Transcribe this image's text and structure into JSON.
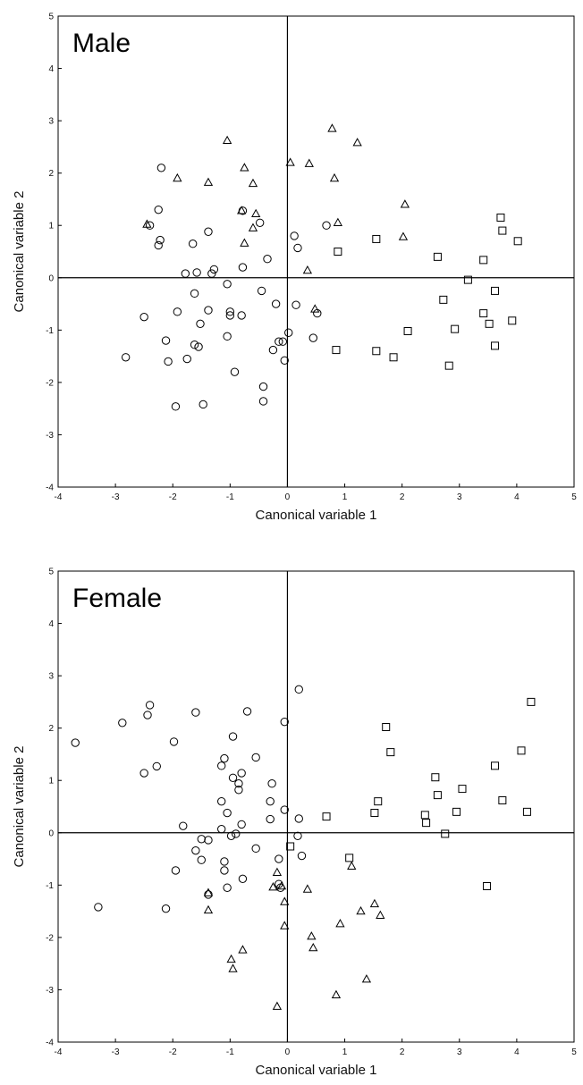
{
  "chart_data": [
    {
      "type": "scatter",
      "panel_label": "Male",
      "xlabel": "Canonical variable 1",
      "ylabel": "Canonical variable 2",
      "xlim": [
        -4,
        5
      ],
      "ylim": [
        -4,
        5
      ],
      "xticks": [
        -4,
        -3,
        -2,
        -1,
        0,
        1,
        2,
        3,
        4,
        5
      ],
      "yticks": [
        -4,
        -3,
        -2,
        -1,
        0,
        1,
        2,
        3,
        4,
        5
      ],
      "reference_lines": {
        "x": 0,
        "y": 0
      },
      "grid": false,
      "series": [
        {
          "marker": "circle",
          "points": [
            [
              -2.2,
              2.1
            ],
            [
              -2.25,
              1.3
            ],
            [
              -2.25,
              0.62
            ],
            [
              -2.22,
              0.72
            ],
            [
              -2.4,
              1.0
            ],
            [
              -2.5,
              -0.75
            ],
            [
              -2.82,
              -1.52
            ],
            [
              -2.12,
              -1.2
            ],
            [
              -2.08,
              -1.6
            ],
            [
              -1.92,
              -0.65
            ],
            [
              -1.78,
              0.08
            ],
            [
              -1.65,
              0.65
            ],
            [
              -1.62,
              -0.3
            ],
            [
              -1.58,
              0.1
            ],
            [
              -1.52,
              -0.88
            ],
            [
              -1.62,
              -1.28
            ],
            [
              -1.55,
              -1.32
            ],
            [
              -1.75,
              -1.55
            ],
            [
              -1.38,
              0.88
            ],
            [
              -1.32,
              0.08
            ],
            [
              -1.28,
              0.16
            ],
            [
              -1.38,
              -0.62
            ],
            [
              -1.95,
              -2.46
            ],
            [
              -1.47,
              -2.42
            ],
            [
              -1.05,
              -0.12
            ],
            [
              -1.0,
              -0.72
            ],
            [
              -1.0,
              -0.65
            ],
            [
              -1.05,
              -1.12
            ],
            [
              -0.92,
              -1.8
            ],
            [
              -0.78,
              1.28
            ],
            [
              -0.78,
              0.2
            ],
            [
              -0.8,
              -0.72
            ],
            [
              -0.48,
              1.05
            ],
            [
              -0.35,
              0.36
            ],
            [
              -0.45,
              -0.25
            ],
            [
              -0.42,
              -2.08
            ],
            [
              -0.42,
              -2.36
            ],
            [
              -0.25,
              -1.38
            ],
            [
              -0.2,
              -0.5
            ],
            [
              -0.15,
              -1.22
            ],
            [
              -0.08,
              -1.22
            ],
            [
              -0.05,
              -1.58
            ],
            [
              0.02,
              -1.05
            ],
            [
              0.12,
              0.8
            ],
            [
              0.18,
              0.57
            ],
            [
              0.15,
              -0.52
            ],
            [
              0.45,
              -1.15
            ],
            [
              0.52,
              -0.68
            ],
            [
              0.68,
              1.0
            ]
          ]
        },
        {
          "marker": "triangle",
          "points": [
            [
              -1.05,
              2.62
            ],
            [
              -0.75,
              2.1
            ],
            [
              -1.92,
              1.9
            ],
            [
              -1.38,
              1.82
            ],
            [
              -0.6,
              1.8
            ],
            [
              -2.45,
              1.02
            ],
            [
              -0.8,
              1.28
            ],
            [
              -0.55,
              1.22
            ],
            [
              -0.6,
              0.95
            ],
            [
              -0.75,
              0.66
            ],
            [
              0.05,
              2.2
            ],
            [
              0.38,
              2.18
            ],
            [
              0.78,
              2.85
            ],
            [
              1.22,
              2.58
            ],
            [
              0.82,
              1.9
            ],
            [
              0.88,
              1.05
            ],
            [
              2.05,
              1.4
            ],
            [
              2.02,
              0.78
            ],
            [
              0.35,
              0.14
            ],
            [
              0.48,
              -0.6
            ]
          ]
        },
        {
          "marker": "square",
          "points": [
            [
              3.72,
              1.15
            ],
            [
              3.75,
              0.9
            ],
            [
              4.02,
              0.7
            ],
            [
              0.88,
              0.5
            ],
            [
              1.55,
              0.74
            ],
            [
              2.62,
              0.4
            ],
            [
              3.42,
              0.34
            ],
            [
              3.15,
              -0.04
            ],
            [
              2.72,
              -0.42
            ],
            [
              3.62,
              -0.25
            ],
            [
              3.42,
              -0.68
            ],
            [
              3.52,
              -0.88
            ],
            [
              3.92,
              -0.82
            ],
            [
              2.92,
              -0.98
            ],
            [
              2.1,
              -1.02
            ],
            [
              3.62,
              -1.3
            ],
            [
              0.85,
              -1.38
            ],
            [
              1.55,
              -1.4
            ],
            [
              1.85,
              -1.52
            ],
            [
              2.82,
              -1.68
            ]
          ]
        }
      ]
    },
    {
      "type": "scatter",
      "panel_label": "Female",
      "xlabel": "Canonical variable 1",
      "ylabel": "Canonical variable 2",
      "xlim": [
        -4,
        5
      ],
      "ylim": [
        -4,
        5
      ],
      "xticks": [
        -4,
        -3,
        -2,
        -1,
        0,
        1,
        2,
        3,
        4,
        5
      ],
      "yticks": [
        -4,
        -3,
        -2,
        -1,
        0,
        1,
        2,
        3,
        4,
        5
      ],
      "reference_lines": {
        "x": 0,
        "y": 0
      },
      "grid": false,
      "series": [
        {
          "marker": "circle",
          "points": [
            [
              -3.7,
              1.72
            ],
            [
              -2.88,
              2.1
            ],
            [
              -2.4,
              2.44
            ],
            [
              -2.44,
              2.25
            ],
            [
              -2.28,
              1.27
            ],
            [
              -2.5,
              1.14
            ],
            [
              -1.98,
              1.74
            ],
            [
              -1.6,
              2.3
            ],
            [
              -0.7,
              2.32
            ],
            [
              -0.05,
              2.12
            ],
            [
              0.2,
              2.74
            ],
            [
              -0.95,
              1.84
            ],
            [
              -1.1,
              1.42
            ],
            [
              -1.15,
              1.28
            ],
            [
              -0.95,
              1.05
            ],
            [
              -0.55,
              1.44
            ],
            [
              -0.8,
              1.14
            ],
            [
              -0.85,
              0.94
            ],
            [
              -0.85,
              0.82
            ],
            [
              -0.27,
              0.94
            ],
            [
              -1.82,
              0.13
            ],
            [
              -1.15,
              0.6
            ],
            [
              -1.05,
              0.38
            ],
            [
              -0.3,
              0.6
            ],
            [
              -0.3,
              0.26
            ],
            [
              -0.05,
              0.44
            ],
            [
              -1.6,
              -0.34
            ],
            [
              -1.5,
              -0.12
            ],
            [
              -1.38,
              -0.14
            ],
            [
              -1.5,
              -0.52
            ],
            [
              -1.15,
              0.07
            ],
            [
              -0.98,
              -0.06
            ],
            [
              -0.9,
              -0.02
            ],
            [
              -0.8,
              0.16
            ],
            [
              -0.55,
              -0.3
            ],
            [
              -0.15,
              -0.5
            ],
            [
              0.2,
              0.27
            ],
            [
              0.18,
              -0.06
            ],
            [
              0.25,
              -0.44
            ],
            [
              -1.95,
              -0.72
            ],
            [
              -2.12,
              -1.45
            ],
            [
              -1.1,
              -0.55
            ],
            [
              -1.1,
              -0.72
            ],
            [
              -0.78,
              -0.88
            ],
            [
              -1.38,
              -1.18
            ],
            [
              -1.05,
              -1.05
            ],
            [
              -0.15,
              -0.98
            ],
            [
              -0.12,
              -1.05
            ],
            [
              -3.3,
              -1.42
            ]
          ]
        },
        {
          "marker": "triangle",
          "points": [
            [
              -1.38,
              -1.15
            ],
            [
              -1.38,
              -1.48
            ],
            [
              -0.78,
              -2.24
            ],
            [
              -0.98,
              -2.42
            ],
            [
              -0.95,
              -2.6
            ],
            [
              -0.25,
              -1.04
            ],
            [
              -0.18,
              -0.76
            ],
            [
              -0.1,
              -1.02
            ],
            [
              -0.05,
              -1.32
            ],
            [
              -0.05,
              -1.78
            ],
            [
              -0.18,
              -3.32
            ],
            [
              0.35,
              -1.08
            ],
            [
              0.42,
              -1.98
            ],
            [
              0.45,
              -2.2
            ],
            [
              0.92,
              -1.74
            ],
            [
              1.12,
              -0.64
            ],
            [
              1.28,
              -1.5
            ],
            [
              1.52,
              -1.36
            ],
            [
              1.62,
              -1.58
            ],
            [
              1.38,
              -2.8
            ],
            [
              0.85,
              -3.1
            ]
          ]
        },
        {
          "marker": "square",
          "points": [
            [
              4.25,
              2.5
            ],
            [
              1.72,
              2.02
            ],
            [
              1.8,
              1.54
            ],
            [
              4.08,
              1.57
            ],
            [
              3.62,
              1.28
            ],
            [
              2.58,
              1.06
            ],
            [
              2.62,
              0.72
            ],
            [
              3.05,
              0.84
            ],
            [
              3.75,
              0.62
            ],
            [
              4.18,
              0.4
            ],
            [
              1.58,
              0.6
            ],
            [
              1.52,
              0.38
            ],
            [
              2.95,
              0.4
            ],
            [
              2.4,
              0.34
            ],
            [
              2.42,
              0.19
            ],
            [
              0.68,
              0.31
            ],
            [
              2.75,
              -0.02
            ],
            [
              0.05,
              -0.26
            ],
            [
              1.08,
              -0.48
            ],
            [
              3.48,
              -1.02
            ]
          ]
        }
      ]
    }
  ]
}
